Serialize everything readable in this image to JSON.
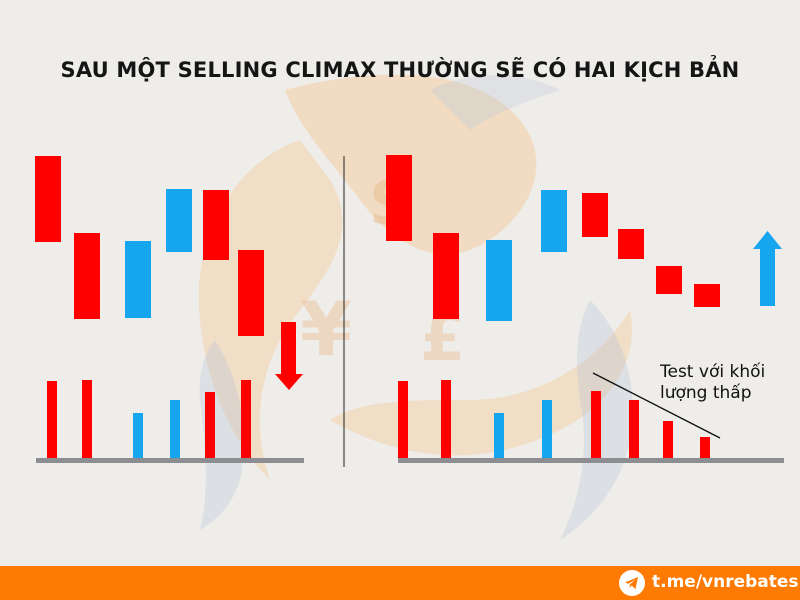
{
  "title": "SAU MỘT SELLING CLIMAX THƯỜNG SẼ CÓ HAI KỊCH BẢN",
  "annotation": {
    "line1": "Test với khối",
    "line2": "lượng thấp"
  },
  "footer": {
    "handle": "t.me/vnrebates",
    "icon": "telegram-icon"
  },
  "colors": {
    "bear": "#ff0000",
    "bull": "#16a5ef",
    "baseline": "#8c8e92",
    "footer": "#ff7a00",
    "watermark": "#f3c894"
  },
  "arrows": {
    "left": {
      "direction": "down",
      "color": "#ff0000"
    },
    "right": {
      "direction": "up",
      "color": "#16a5ef"
    }
  }
}
